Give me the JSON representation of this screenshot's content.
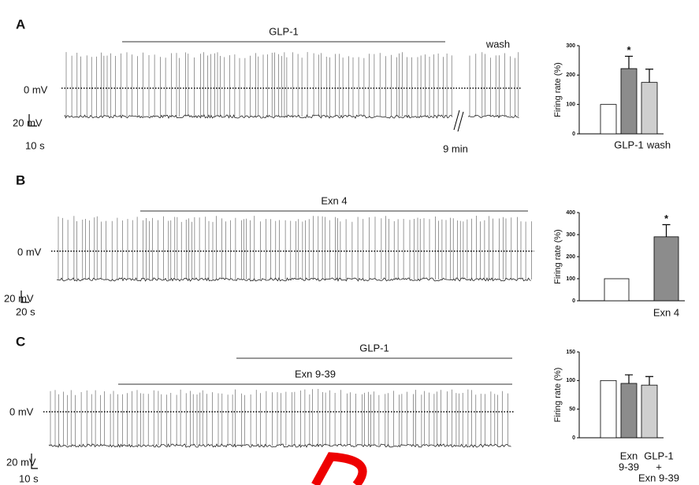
{
  "traces": [
    {
      "label": "A",
      "drugs": [
        "GLP-1"
      ],
      "wash": "wash",
      "zero": "0 mV",
      "vscale": "20 mV",
      "tscale": "10 s",
      "gap": "9 min"
    },
    {
      "label": "B",
      "drugs": [
        "Exn 4"
      ],
      "zero": "0 mV",
      "vscale": "20 mV",
      "tscale": "20 s"
    },
    {
      "label": "C",
      "drugs": [
        "GLP-1",
        "Exn 9-39"
      ],
      "zero": "0 mV",
      "vscale": "20 mV",
      "tscale": "10 s"
    }
  ],
  "chart_data": [
    {
      "type": "bar",
      "ylabel": "Firing rate (%)",
      "categories": [
        null,
        "GLP-1",
        "wash"
      ],
      "values": [
        100,
        222,
        175
      ],
      "errors": [
        null,
        42,
        45
      ],
      "significance": [
        null,
        "*",
        null
      ],
      "colors": [
        "#ffffff",
        "#8c8c8c",
        "#cfcfcf"
      ],
      "ylim": [
        0,
        300
      ],
      "yticks": [
        0,
        100,
        200,
        300
      ]
    },
    {
      "type": "bar",
      "ylabel": "Firing rate (%)",
      "categories": [
        null,
        "Exn 4"
      ],
      "values": [
        100,
        290
      ],
      "errors": [
        null,
        55
      ],
      "significance": [
        null,
        "*"
      ],
      "colors": [
        "#ffffff",
        "#8c8c8c"
      ],
      "ylim": [
        0,
        400
      ],
      "yticks": [
        0,
        100,
        200,
        300,
        400
      ]
    },
    {
      "type": "bar",
      "ylabel": "Firing rate (%)",
      "categories": [
        null,
        [
          "Exn",
          "9-39"
        ],
        [
          "GLP-1",
          "+",
          "Exn 9-39"
        ]
      ],
      "values": [
        100,
        95,
        92
      ],
      "errors": [
        null,
        15,
        15
      ],
      "significance": [
        null,
        null,
        null
      ],
      "colors": [
        "#ffffff",
        "#8c8c8c",
        "#cfcfcf"
      ],
      "ylim": [
        0,
        150
      ],
      "yticks": [
        0,
        50,
        100,
        150
      ]
    }
  ]
}
